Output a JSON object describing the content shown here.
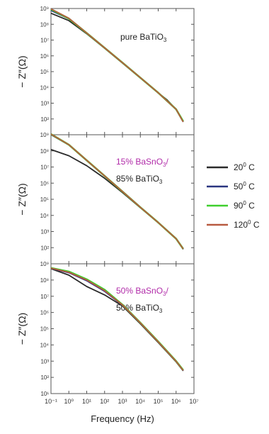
{
  "chart_data": [
    {
      "type": "line",
      "xscale": "log",
      "yscale": "log",
      "xlim": [
        0.1,
        10000000
      ],
      "ylim": [
        10,
        1000000000
      ],
      "ylabel": "− Z″(Ω)",
      "annotation_lines": [
        {
          "text": "pure BaTiO",
          "sub": "3",
          "color": "#222222"
        }
      ],
      "yticks": [
        "10⁹",
        "10⁸",
        "10⁷",
        "10⁶",
        "10⁵",
        "10⁴",
        "10³",
        "10²"
      ],
      "series": [
        {
          "name": "20° C",
          "color": "#2a2a2a",
          "points": [
            [
              0.1,
              500000000
            ],
            [
              1,
              170000000
            ],
            [
              10,
              25000000
            ],
            [
              100,
              3000000
            ],
            [
              1000,
              350000
            ],
            [
              10000,
              40000
            ],
            [
              100000,
              4500
            ],
            [
              300000,
              1700
            ],
            [
              1000000,
              400
            ],
            [
              2500000,
              70
            ]
          ]
        },
        {
          "name": "50° C",
          "color": "#2a3580",
          "points": [
            [
              0.1,
              750000000
            ],
            [
              1,
              220000000
            ],
            [
              10,
              27000000
            ],
            [
              100,
              3100000
            ],
            [
              1000,
              360000
            ],
            [
              10000,
              40000
            ],
            [
              100000,
              4500
            ],
            [
              1000000,
              400
            ],
            [
              2500000,
              65
            ]
          ]
        },
        {
          "name": "90° C",
          "color": "#3fcf2d",
          "points": [
            [
              0.1,
              900000000
            ],
            [
              1,
              230000000
            ],
            [
              10,
              28000000
            ],
            [
              100,
              3200000
            ],
            [
              1000,
              370000
            ],
            [
              10000,
              41000
            ],
            [
              100000,
              4600
            ],
            [
              1000000,
              410
            ],
            [
              2500000,
              70
            ]
          ]
        },
        {
          "name": "120° C",
          "color": "#b85a40",
          "points": [
            [
              0.1,
              950000000
            ],
            [
              1,
              240000000
            ],
            [
              10,
              28000000
            ],
            [
              100,
              3200000
            ],
            [
              1000,
              370000
            ],
            [
              10000,
              41000
            ],
            [
              100000,
              4600
            ],
            [
              1000000,
              410
            ],
            [
              2500000,
              65
            ]
          ]
        }
      ]
    },
    {
      "type": "line",
      "xscale": "log",
      "yscale": "log",
      "xlim": [
        0.1,
        10000000
      ],
      "ylim": [
        10,
        1000000000
      ],
      "ylabel": "− Z″(Ω)",
      "annotation_lines": [
        {
          "text": "15% BaSnO",
          "sub": "3",
          "tail": "/",
          "color": "#b02aa8"
        },
        {
          "text": "85% BaTiO",
          "sub": "3",
          "color": "#222222"
        }
      ],
      "yticks": [
        "10⁹",
        "10⁸",
        "10⁷",
        "10⁶",
        "10⁵",
        "10⁴",
        "10³",
        "10²"
      ],
      "series": [
        {
          "name": "20° C",
          "color": "#2a2a2a",
          "points": [
            [
              0.1,
              120000000
            ],
            [
              1,
              50000000
            ],
            [
              10,
              12000000
            ],
            [
              100,
              2000000
            ],
            [
              1000,
              260000
            ],
            [
              10000,
              30000
            ],
            [
              100000,
              3500
            ],
            [
              1000000,
              350
            ],
            [
              2500000,
              80
            ]
          ]
        },
        {
          "name": "50° C",
          "color": "#2a3580",
          "points": [
            [
              0.1,
              1000000000
            ],
            [
              1,
              230000000
            ],
            [
              10,
              25000000
            ],
            [
              100,
              2800000
            ],
            [
              1000,
              300000
            ],
            [
              10000,
              32000
            ],
            [
              100000,
              3600
            ],
            [
              1000000,
              360
            ],
            [
              2500000,
              85
            ]
          ]
        },
        {
          "name": "90° C",
          "color": "#3fcf2d",
          "points": [
            [
              0.1,
              1100000000
            ],
            [
              1,
              240000000
            ],
            [
              10,
              26000000
            ],
            [
              100,
              2800000
            ],
            [
              1000,
              300000
            ],
            [
              10000,
              32000
            ],
            [
              100000,
              3600
            ],
            [
              1000000,
              360
            ],
            [
              2500000,
              85
            ]
          ]
        },
        {
          "name": "120° C",
          "color": "#b85a40",
          "points": [
            [
              0.1,
              1100000000
            ],
            [
              1,
              240000000
            ],
            [
              10,
              26000000
            ],
            [
              100,
              2800000
            ],
            [
              1000,
              300000
            ],
            [
              10000,
              32000
            ],
            [
              100000,
              3600
            ],
            [
              1000000,
              360
            ],
            [
              2500000,
              85
            ]
          ]
        }
      ]
    },
    {
      "type": "line",
      "xscale": "log",
      "yscale": "log",
      "xlim": [
        0.1,
        10000000
      ],
      "ylim": [
        10,
        1000000000
      ],
      "ylabel": "− Z″(Ω)",
      "xlabel": "Frequency (Hz)",
      "annotation_lines": [
        {
          "text": "50% BaSnO",
          "sub": "3",
          "tail": "/",
          "color": "#b02aa8"
        },
        {
          "text": "50% BaTiO",
          "sub": "3",
          "color": "#222222"
        }
      ],
      "yticks": [
        "10⁹",
        "10⁸",
        "10⁷",
        "10⁶",
        "10⁵",
        "10⁴",
        "10³",
        "10²",
        "10¹"
      ],
      "xticks": [
        "10⁻¹",
        "10⁰",
        "10¹",
        "10²",
        "10³",
        "10⁴",
        "10⁵",
        "10⁶",
        "10⁷"
      ],
      "series": [
        {
          "name": "20° C",
          "color": "#2a2a2a",
          "points": [
            [
              0.1,
              500000000
            ],
            [
              1,
              200000000
            ],
            [
              10,
              40000000
            ],
            [
              100,
              12000000
            ],
            [
              1000,
              2500000
            ],
            [
              10000,
              200000
            ],
            [
              100000,
              14000
            ],
            [
              1000000,
              900
            ],
            [
              2500000,
              250
            ]
          ]
        },
        {
          "name": "50° C",
          "color": "#2a3580",
          "points": [
            [
              0.1,
              520000000
            ],
            [
              1,
              280000000
            ],
            [
              10,
              90000000
            ],
            [
              100,
              20000000
            ],
            [
              1000,
              2800000
            ],
            [
              10000,
              220000
            ],
            [
              100000,
              15000
            ],
            [
              1000000,
              950
            ],
            [
              2500000,
              260
            ]
          ]
        },
        {
          "name": "90° C",
          "color": "#3fcf2d",
          "points": [
            [
              0.1,
              550000000
            ],
            [
              1,
              330000000
            ],
            [
              10,
              110000000
            ],
            [
              100,
              25000000
            ],
            [
              1000,
              3000000
            ],
            [
              10000,
              230000
            ],
            [
              100000,
              16000
            ],
            [
              1000000,
              1000
            ],
            [
              2500000,
              280
            ]
          ]
        },
        {
          "name": "120° C",
          "color": "#b85a40",
          "points": [
            [
              0.1,
              540000000
            ],
            [
              1,
              300000000
            ],
            [
              10,
              100000000
            ],
            [
              100,
              22000000
            ],
            [
              1000,
              2900000
            ],
            [
              10000,
              225000
            ],
            [
              100000,
              15500
            ],
            [
              1000000,
              980
            ],
            [
              2500000,
              270
            ]
          ]
        }
      ]
    }
  ],
  "legend": [
    {
      "name": "20",
      "sup": "0",
      "unit": " C",
      "color": "#2a2a2a"
    },
    {
      "name": "50",
      "sup": "0",
      "unit": " C",
      "color": "#2a3580"
    },
    {
      "name": "90",
      "sup": "0",
      "unit": " C",
      "color": "#3fcf2d"
    },
    {
      "name": "120",
      "sup": "0",
      "unit": " C",
      "color": "#b85a40"
    }
  ]
}
